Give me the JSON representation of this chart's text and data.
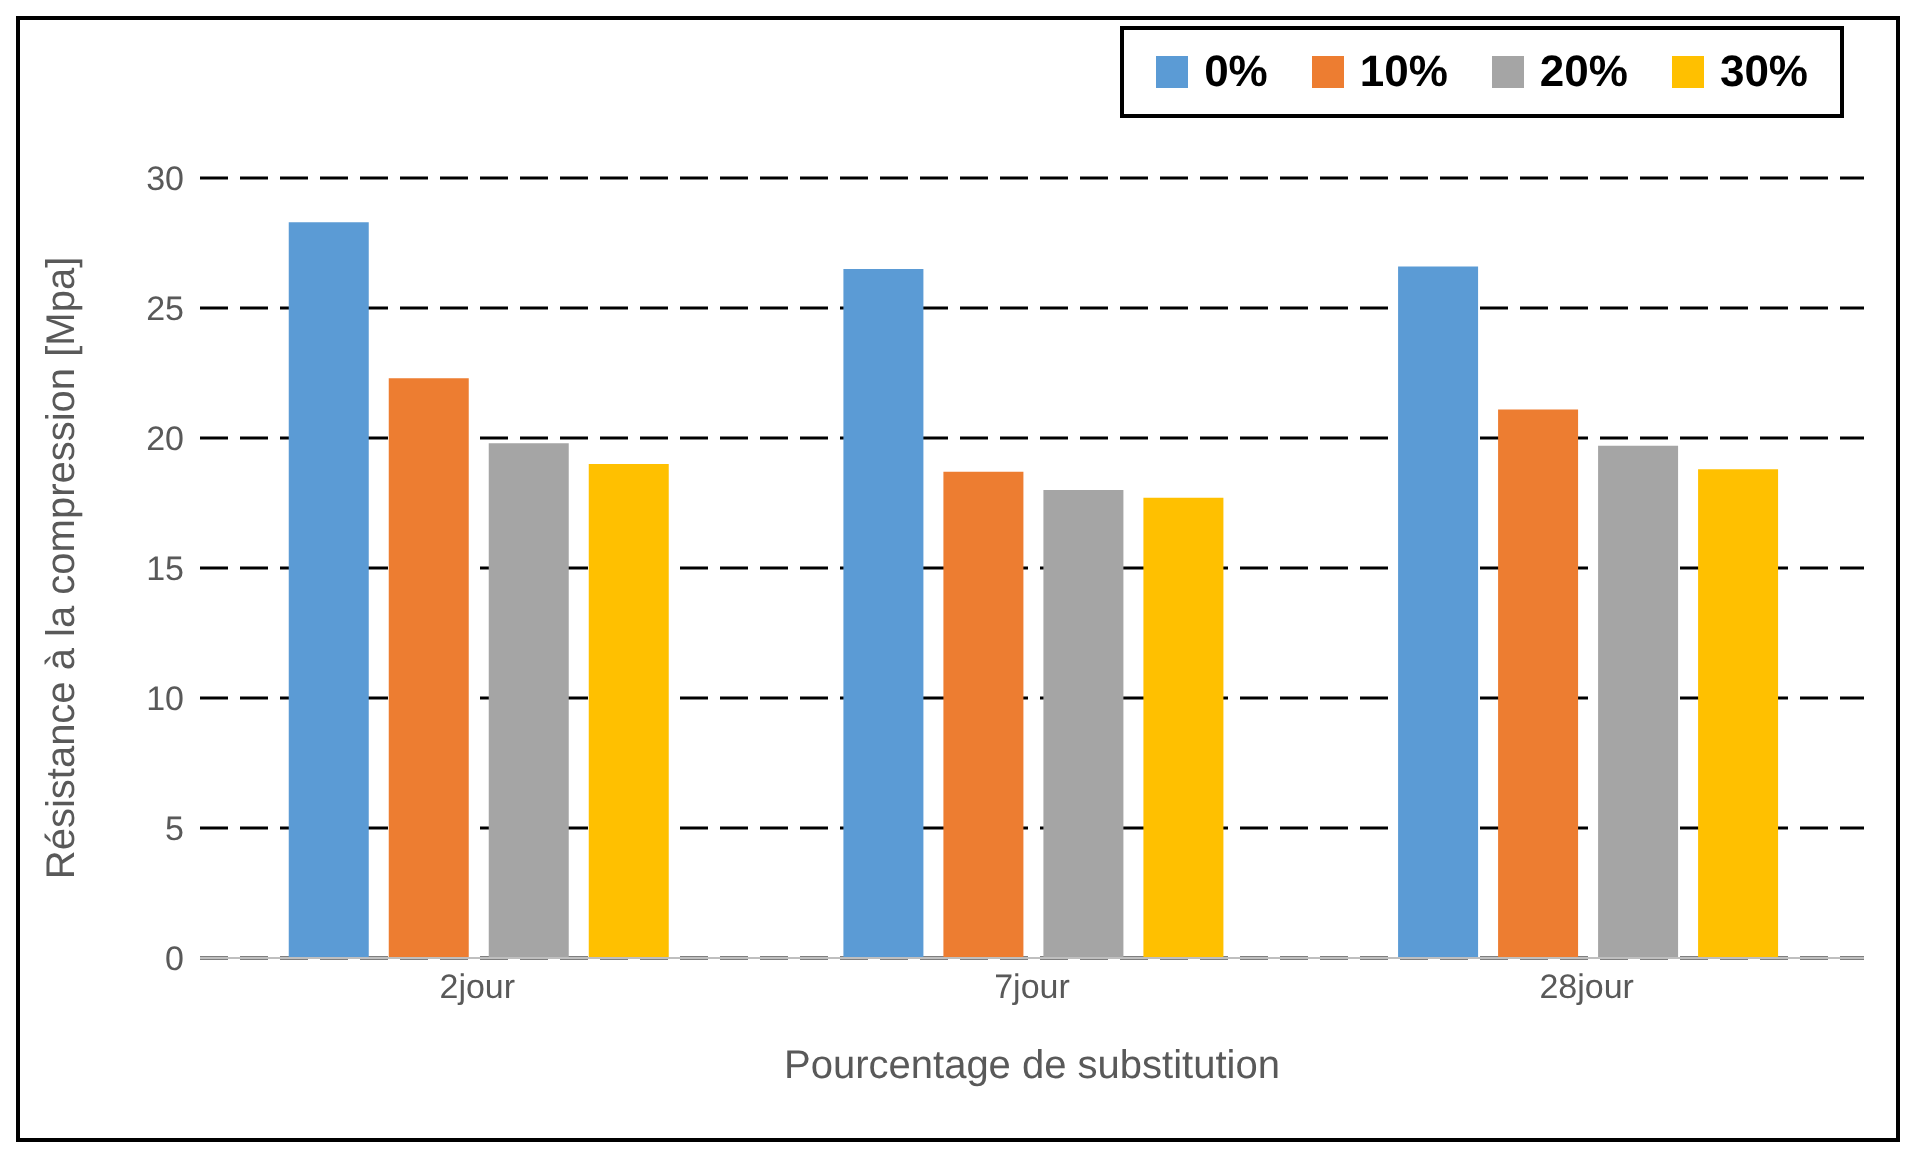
{
  "chart_data": {
    "type": "bar",
    "xlabel": "Pourcentage de substitution",
    "ylabel": "Résistance à la compression [Mpa]",
    "categories": [
      "2jour",
      "7jour",
      "28jour"
    ],
    "series": [
      {
        "name": "0%",
        "color": "#5b9bd5",
        "values": [
          28.3,
          26.5,
          26.6
        ]
      },
      {
        "name": "10%",
        "color": "#ed7d31",
        "values": [
          22.3,
          18.7,
          21.1
        ]
      },
      {
        "name": "20%",
        "color": "#a5a5a5",
        "values": [
          19.8,
          18.0,
          19.7
        ]
      },
      {
        "name": "30%",
        "color": "#ffc000",
        "values": [
          19.0,
          17.7,
          18.8
        ]
      }
    ],
    "ylim": [
      0,
      30
    ],
    "yticks": [
      0,
      5,
      10,
      15,
      20,
      25,
      30
    ],
    "grid": "y",
    "legend": "top right"
  }
}
